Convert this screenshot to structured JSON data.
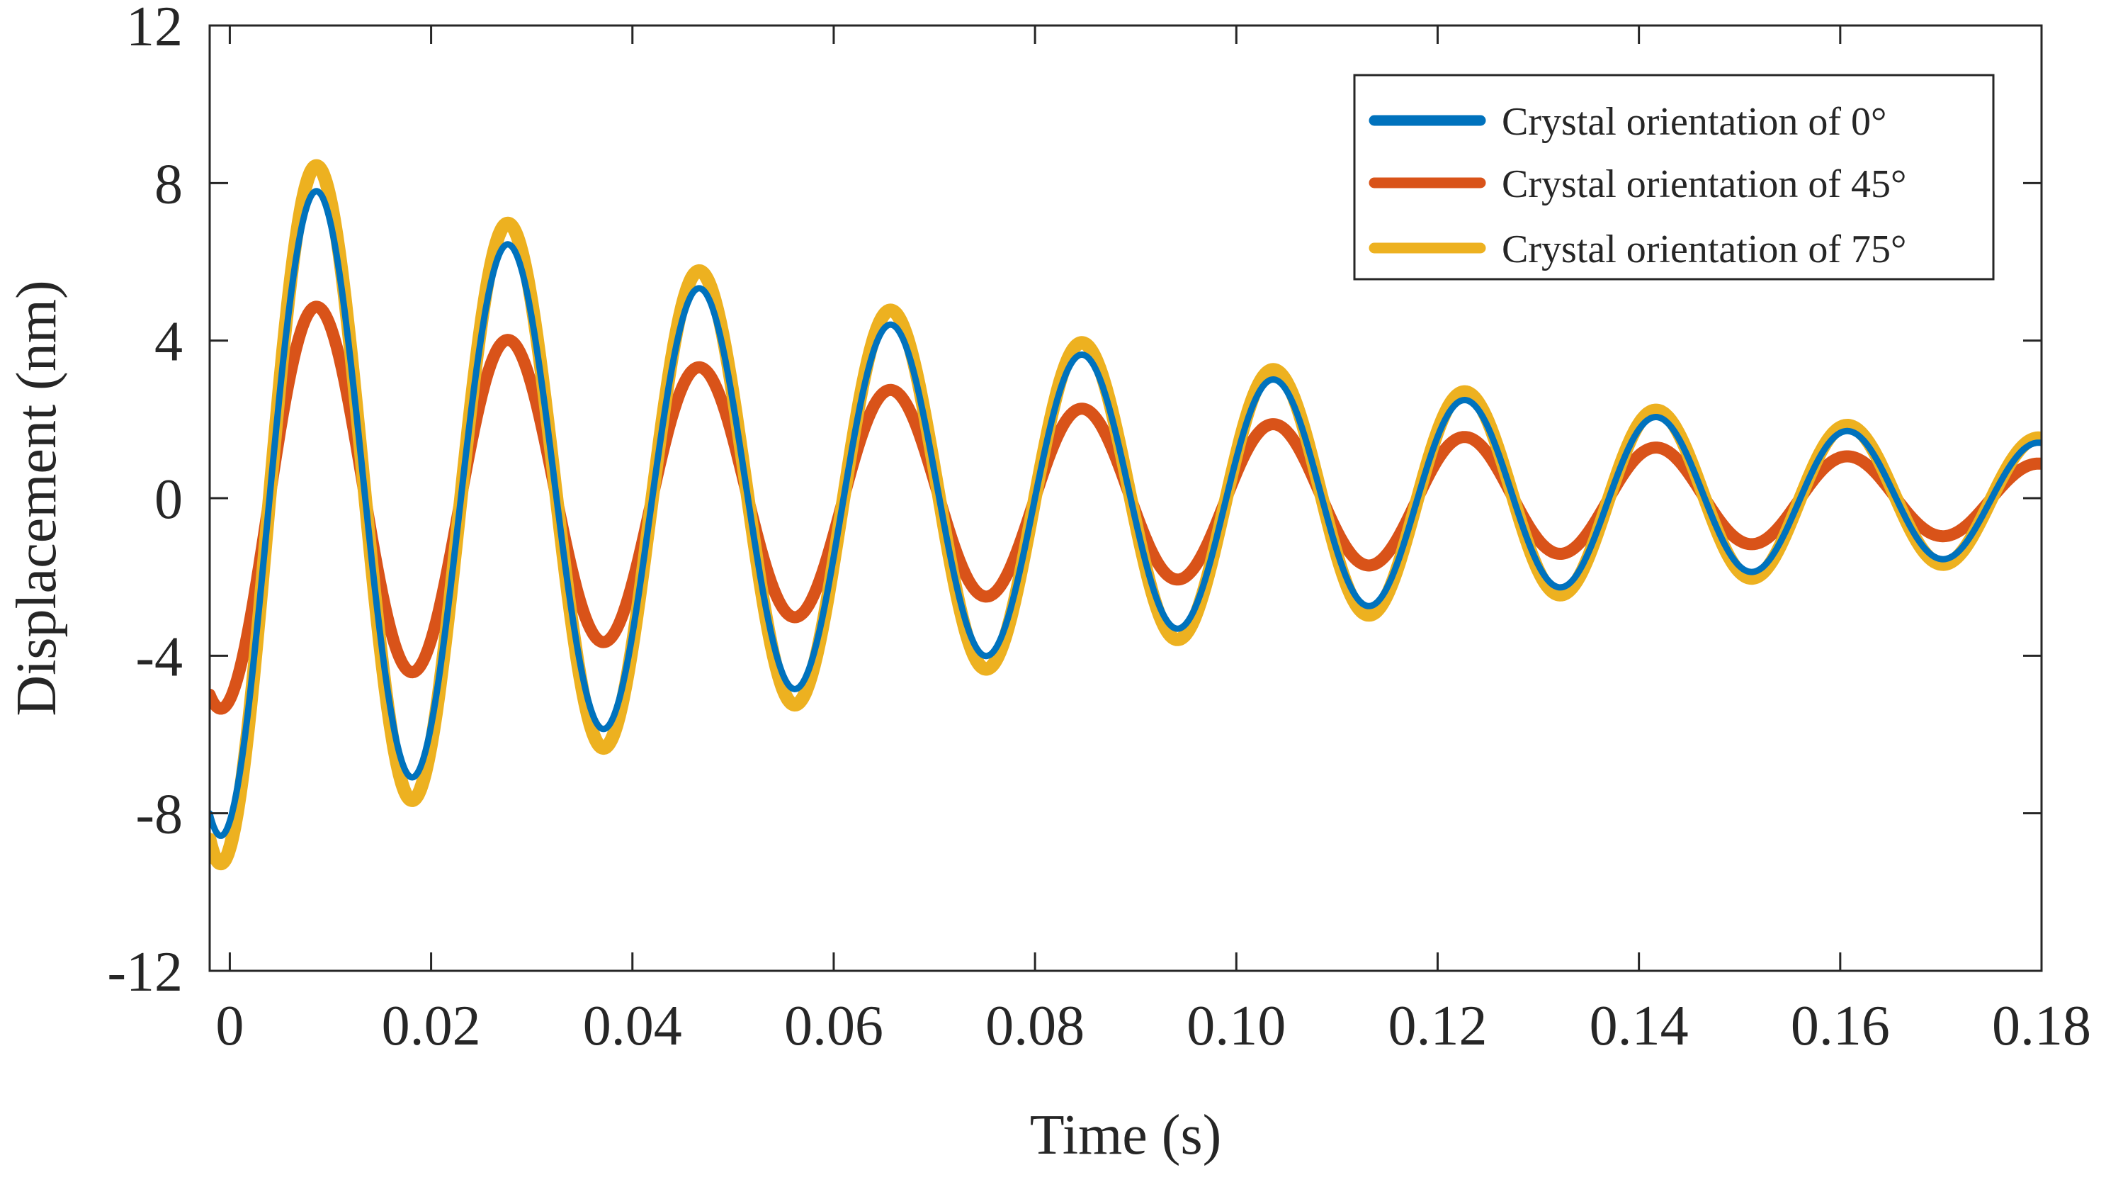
{
  "chart_data": {
    "type": "line",
    "title": "",
    "xlabel": "Time (s)",
    "ylabel": "Displacement (nm)",
    "xlim": [
      -0.002,
      0.18
    ],
    "ylim": [
      -12,
      12
    ],
    "xticks": [
      0,
      0.02,
      0.04,
      0.06,
      0.08,
      0.1,
      0.12,
      0.14,
      0.16,
      0.18
    ],
    "xtick_labels": [
      "0",
      "0.02",
      "0.04",
      "0.06",
      "0.08",
      "0.10",
      "0.12",
      "0.14",
      "0.16",
      "0.18"
    ],
    "yticks": [
      -12,
      -8,
      -4,
      0,
      4,
      8,
      12
    ],
    "ytick_labels": [
      "-12",
      "-8",
      "-4",
      "0",
      "4",
      "8",
      "12"
    ],
    "grid": false,
    "legend_position": "top-right",
    "model": "damped cosine: y = A * exp(-t / tau) * cos(2*pi*f*(t - 0.0087)), t in seconds",
    "series": [
      {
        "name": "Crystal orientation of 0°",
        "color": "#0072BD",
        "amplitude": 8.5,
        "tau": 0.1,
        "frequency": 52.6,
        "peaks": [
          8.3,
          7.3,
          6.4,
          5.6,
          4.9,
          4.3,
          3.7,
          3.2,
          2.8,
          2.5
        ]
      },
      {
        "name": "Crystal orientation of 45°",
        "color": "#D95319",
        "amplitude": 5.3,
        "tau": 0.1,
        "frequency": 52.6,
        "peaks": [
          5.1,
          4.5,
          3.9,
          3.4,
          2.9,
          2.5,
          2.2,
          1.9,
          1.6,
          1.4
        ]
      },
      {
        "name": "Crystal orientation of 75°",
        "color": "#EDB120",
        "amplitude": 9.2,
        "tau": 0.1,
        "frequency": 52.6,
        "peaks": [
          8.9,
          7.8,
          6.8,
          5.9,
          5.2,
          4.5,
          3.9,
          3.4,
          3.0,
          2.6
        ]
      }
    ]
  }
}
